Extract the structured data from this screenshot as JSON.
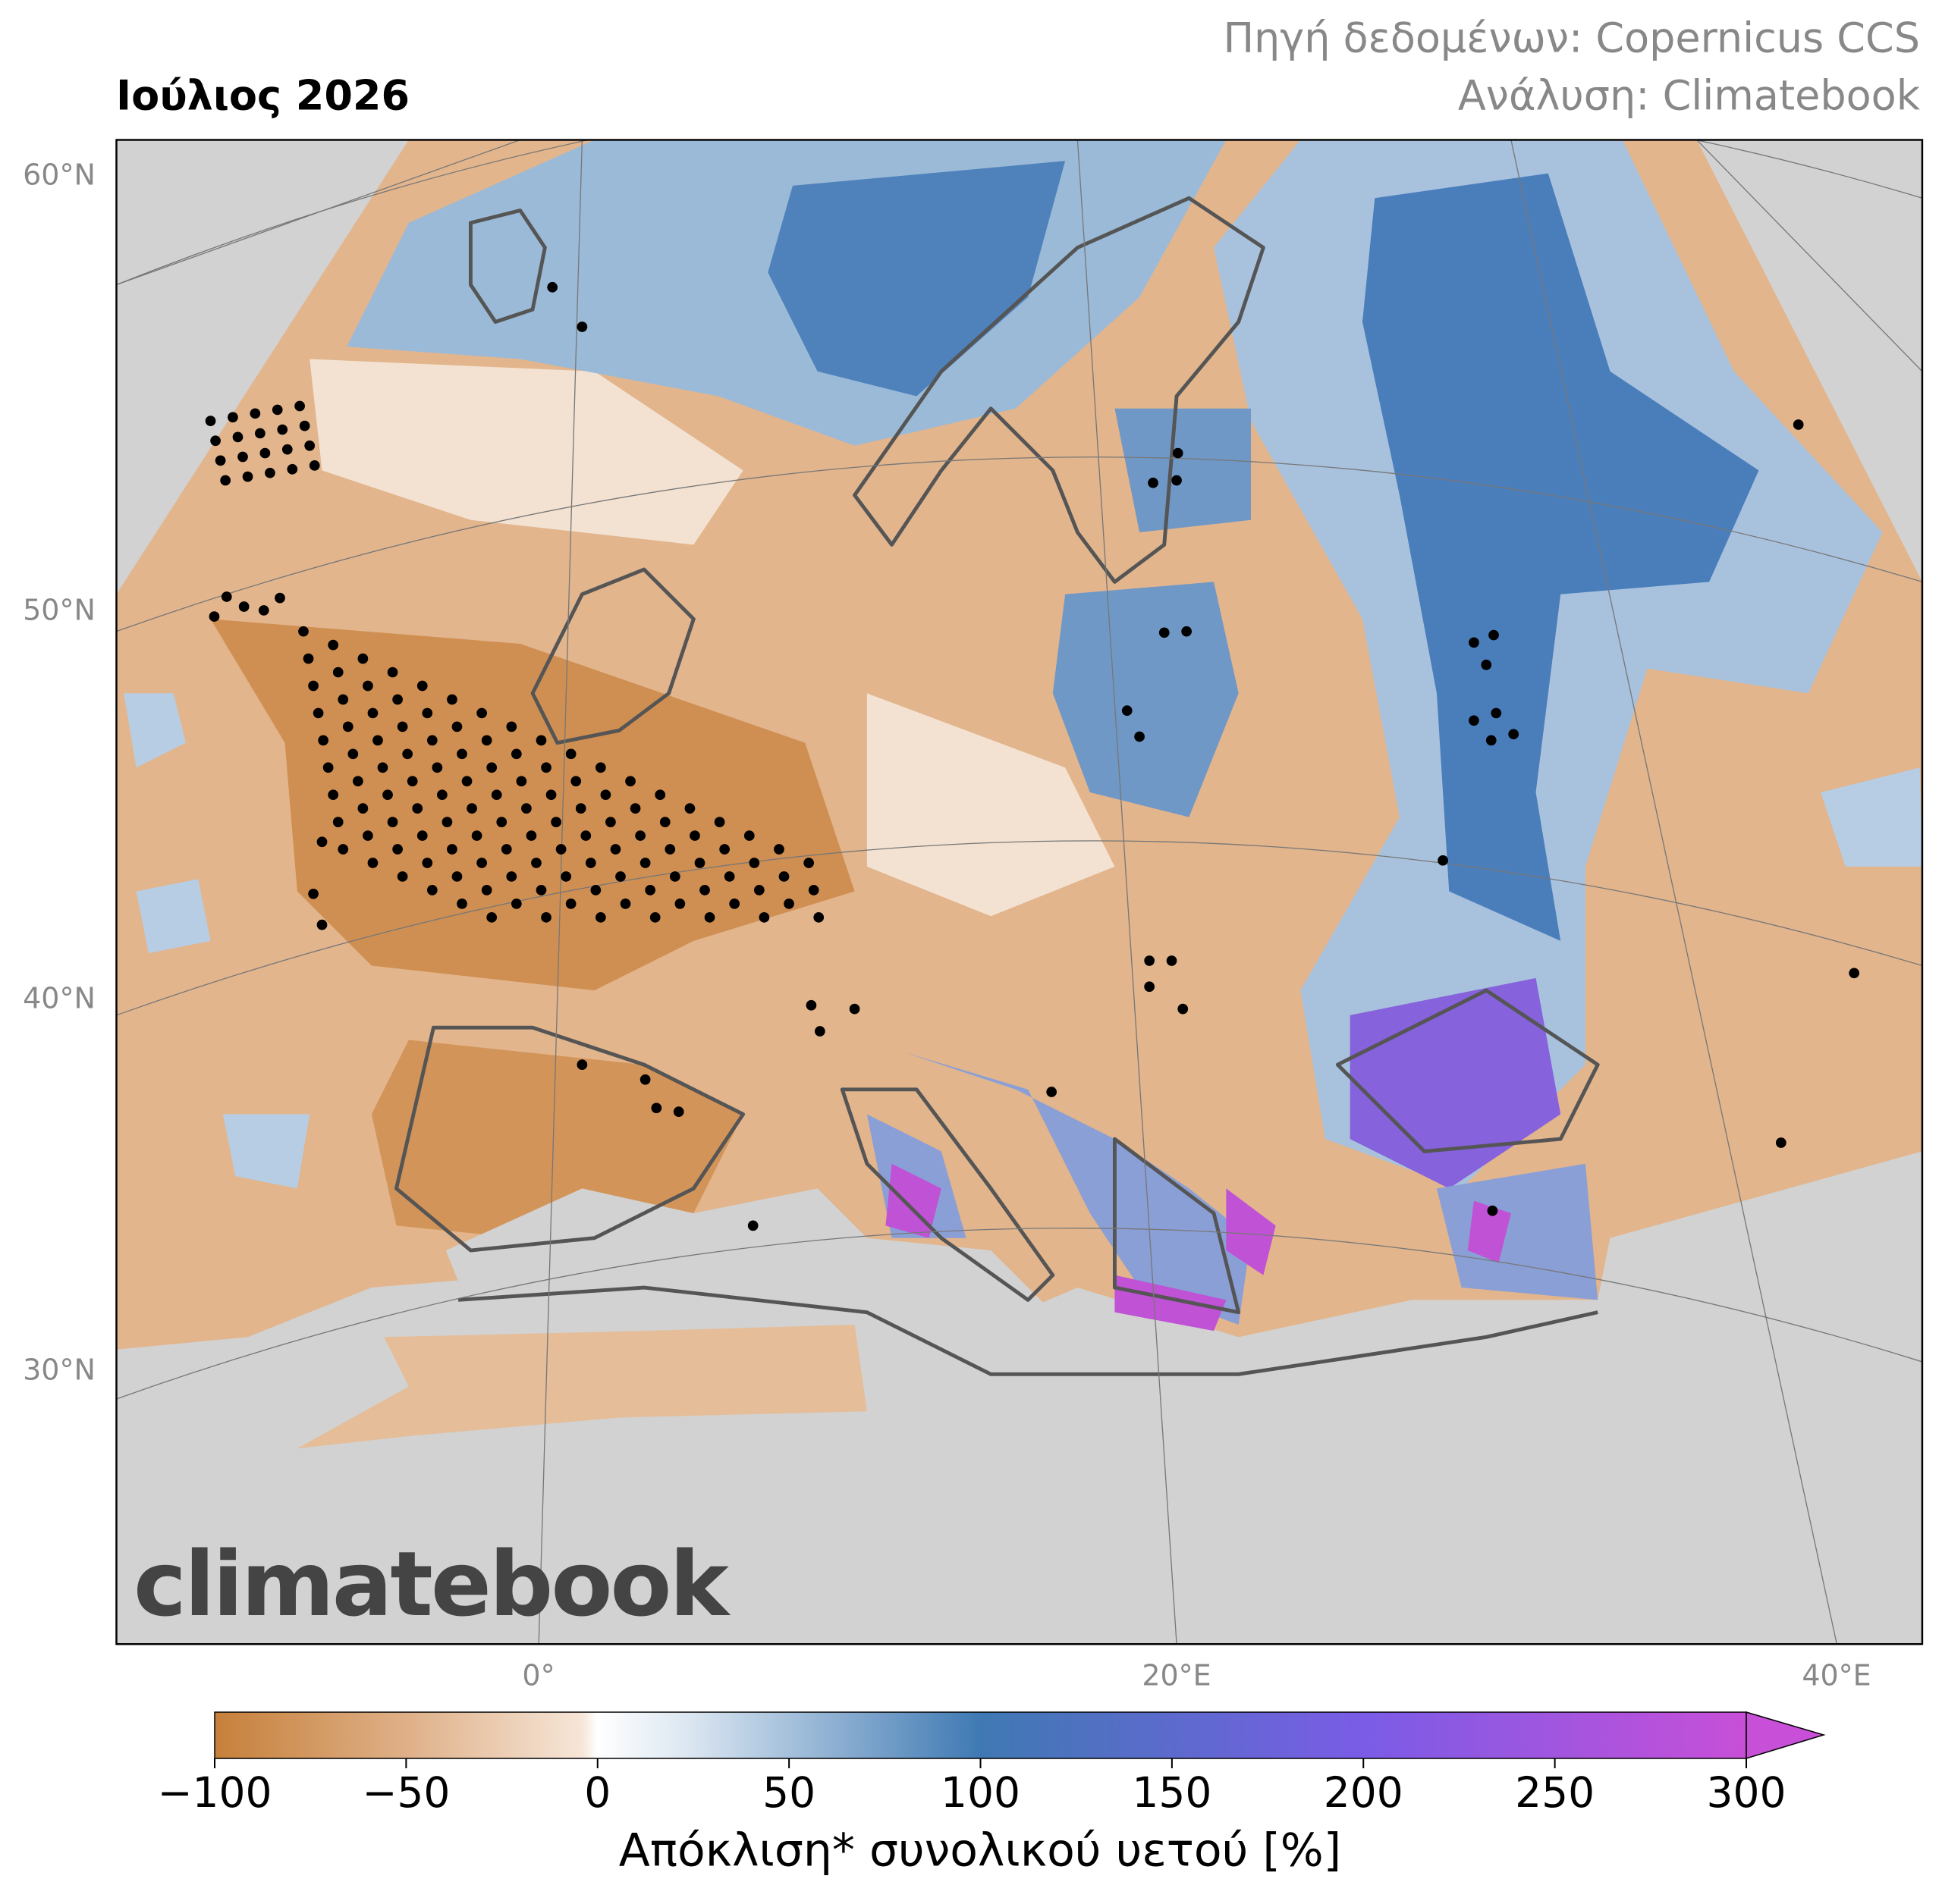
{
  "header": {
    "title": "Ιούλιος 2026",
    "source": "Πηγή δεδομένων: Copernicus CCS",
    "analysis": "Ανάλυση: Climatebook"
  },
  "map": {
    "lat_labels": [
      "60°N",
      "50°N",
      "40°N",
      "30°N"
    ],
    "lon_labels": [
      "0°",
      "20°E",
      "40°E"
    ],
    "logo": "climatebook"
  },
  "colorbar": {
    "label": "Απόκλιση* συνολικού υετού [%]",
    "lim": [
      -100,
      300
    ],
    "ticks": [
      {
        "value": -100,
        "label": "−100"
      },
      {
        "value": -50,
        "label": "−50"
      },
      0,
      50,
      100,
      150,
      200,
      250,
      300
    ]
  }
}
